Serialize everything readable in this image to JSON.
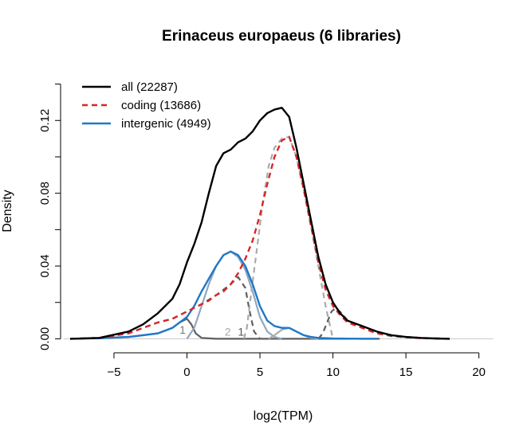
{
  "chart_data": {
    "type": "line",
    "title": "Erinaceus europaeus (6 libraries)",
    "xlabel": "log2(TPM)",
    "ylabel": "Density",
    "xlim": [
      -8,
      21
    ],
    "ylim": [
      -0.002,
      0.142
    ],
    "xticks": [
      -5,
      0,
      5,
      10,
      15,
      20
    ],
    "xtick_labels": [
      "−5",
      "0",
      "5",
      "10",
      "15",
      "20"
    ],
    "yticks": [
      0.0,
      0.04,
      0.08,
      0.12
    ],
    "ytick_labels": [
      "0.00",
      "0.04",
      "0.08",
      "0.12"
    ],
    "grid": false,
    "legend": {
      "position": "top-left",
      "entries": [
        {
          "label": "all (22287)",
          "color": "#000000",
          "style": "solid"
        },
        {
          "label": "coding (13686)",
          "color": "#d62728",
          "style": "dashed"
        },
        {
          "label": "intergenic (4949)",
          "color": "#1f78c8",
          "style": "solid"
        }
      ]
    },
    "series": [
      {
        "name": "all (22287)",
        "color": "#000000",
        "style": "solid",
        "x": [
          -8,
          -6,
          -4,
          -3,
          -2,
          -1,
          -0.5,
          0,
          0.5,
          1,
          1.5,
          2,
          2.5,
          3,
          3.5,
          4,
          4.5,
          5,
          5.5,
          6,
          6.5,
          7,
          7.5,
          8,
          8.5,
          9,
          9.5,
          10,
          10.5,
          11,
          12,
          13,
          14,
          15,
          16,
          17,
          18
        ],
        "y": [
          0.0,
          0.0005,
          0.004,
          0.008,
          0.014,
          0.022,
          0.03,
          0.042,
          0.052,
          0.064,
          0.08,
          0.095,
          0.102,
          0.104,
          0.108,
          0.11,
          0.114,
          0.12,
          0.124,
          0.126,
          0.127,
          0.122,
          0.105,
          0.085,
          0.065,
          0.045,
          0.03,
          0.02,
          0.014,
          0.01,
          0.007,
          0.004,
          0.002,
          0.001,
          0.0005,
          0.0002,
          0.0
        ]
      },
      {
        "name": "coding (13686)",
        "color": "#d62728",
        "style": "dashed",
        "x": [
          -8,
          -6,
          -4,
          -3,
          -2,
          -1,
          -0.5,
          0,
          0.5,
          1,
          1.5,
          2,
          2.5,
          3,
          3.5,
          4,
          4.5,
          5,
          5.5,
          6,
          6.5,
          7,
          7.5,
          8,
          8.5,
          9,
          9.5,
          10,
          10.5,
          11,
          12,
          13,
          14,
          15,
          16,
          17,
          18
        ],
        "y": [
          0.0,
          0.0005,
          0.003,
          0.006,
          0.009,
          0.011,
          0.013,
          0.015,
          0.017,
          0.019,
          0.021,
          0.024,
          0.026,
          0.03,
          0.036,
          0.044,
          0.054,
          0.068,
          0.085,
          0.1,
          0.109,
          0.111,
          0.1,
          0.082,
          0.062,
          0.042,
          0.027,
          0.018,
          0.013,
          0.009,
          0.006,
          0.003,
          0.002,
          0.001,
          0.0005,
          0.0002,
          0.0
        ]
      },
      {
        "name": "intergenic (4949)",
        "color": "#1f78c8",
        "style": "solid",
        "x": [
          -8,
          -6,
          -4,
          -3,
          -2,
          -1,
          -0.5,
          0,
          0.5,
          1,
          1.5,
          2,
          2.5,
          3,
          3.5,
          4,
          4.5,
          5,
          5.5,
          6,
          6.5,
          7,
          7.5,
          8,
          8.5,
          9,
          10,
          11,
          12,
          13
        ],
        "y": [
          0.0,
          0.0003,
          0.001,
          0.002,
          0.003,
          0.006,
          0.009,
          0.012,
          0.018,
          0.026,
          0.033,
          0.04,
          0.046,
          0.048,
          0.046,
          0.04,
          0.03,
          0.018,
          0.01,
          0.007,
          0.006,
          0.006,
          0.004,
          0.002,
          0.001,
          0.0005,
          0.0002,
          0.0001,
          0.0,
          0.0
        ]
      }
    ],
    "components": [
      {
        "color": "#5f5f5f",
        "style": "solid",
        "x": [
          -8,
          -6,
          -4,
          -3,
          -2,
          -1,
          -0.5,
          0,
          0.3,
          0.6,
          1.0,
          2,
          4,
          6,
          8,
          10,
          12,
          13.2
        ],
        "y": [
          0.0,
          0.0003,
          0.001,
          0.002,
          0.003,
          0.006,
          0.009,
          0.011,
          0.008,
          0.003,
          0.0005,
          0.0,
          0.0,
          0.0,
          0.0,
          0.0,
          0.0,
          0.0
        ]
      },
      {
        "color": "#8fa8bd",
        "style": "solid",
        "x": [
          0.0,
          0.5,
          1.0,
          1.5,
          2.0,
          2.5,
          3.0,
          3.5,
          4.0,
          4.5,
          5.0,
          5.5,
          6.0,
          6.5
        ],
        "y": [
          0.0,
          0.006,
          0.018,
          0.03,
          0.04,
          0.046,
          0.048,
          0.045,
          0.038,
          0.026,
          0.012,
          0.004,
          0.001,
          0.0
        ]
      },
      {
        "color": "#5f5f5f",
        "style": "dashed",
        "x": [
          -8,
          -6,
          -4,
          -3,
          -2,
          -1,
          0,
          1,
          2,
          3,
          3.5,
          4.0,
          4.3,
          4.6,
          5.0
        ],
        "y": [
          0.0,
          0.0005,
          0.003,
          0.006,
          0.009,
          0.011,
          0.015,
          0.019,
          0.024,
          0.03,
          0.034,
          0.028,
          0.015,
          0.004,
          0.0
        ]
      },
      {
        "color": "#aaaaaa",
        "style": "dashed",
        "x": [
          3.9,
          4.1,
          4.4,
          4.8,
          5.2,
          5.6,
          6.0,
          6.5,
          7.0,
          7.5,
          8.0,
          8.5,
          9.0,
          9.5,
          10.0
        ],
        "y": [
          0.0,
          0.006,
          0.025,
          0.05,
          0.075,
          0.095,
          0.105,
          0.11,
          0.111,
          0.1,
          0.082,
          0.062,
          0.04,
          0.018,
          0.0
        ]
      },
      {
        "color": "#5f5f5f",
        "style": "dashed",
        "x": [
          9.0,
          9.3,
          9.6,
          9.9,
          10.2,
          10.6,
          11.0,
          12.0,
          13.0,
          14.0,
          15.0,
          16.0,
          17.0,
          18.0
        ],
        "y": [
          0.0,
          0.003,
          0.009,
          0.015,
          0.017,
          0.014,
          0.01,
          0.006,
          0.003,
          0.0015,
          0.0008,
          0.0004,
          0.0002,
          0.0
        ]
      },
      {
        "color": "#aaaaaa",
        "style": "solid",
        "x": [
          5.6,
          6.0,
          6.5,
          7.0,
          7.5,
          8.0,
          8.5,
          9.0
        ],
        "y": [
          0.0,
          0.002,
          0.005,
          0.006,
          0.004,
          0.002,
          0.0005,
          0.0
        ]
      }
    ],
    "annotations": [
      {
        "text": "1",
        "x": -0.3,
        "y": 0.005,
        "color": "#777777"
      },
      {
        "text": "2",
        "x": 2.8,
        "y": 0.004,
        "color": "#aaaaaa"
      },
      {
        "text": "1",
        "x": 3.7,
        "y": 0.004,
        "color": "#555555"
      }
    ]
  }
}
